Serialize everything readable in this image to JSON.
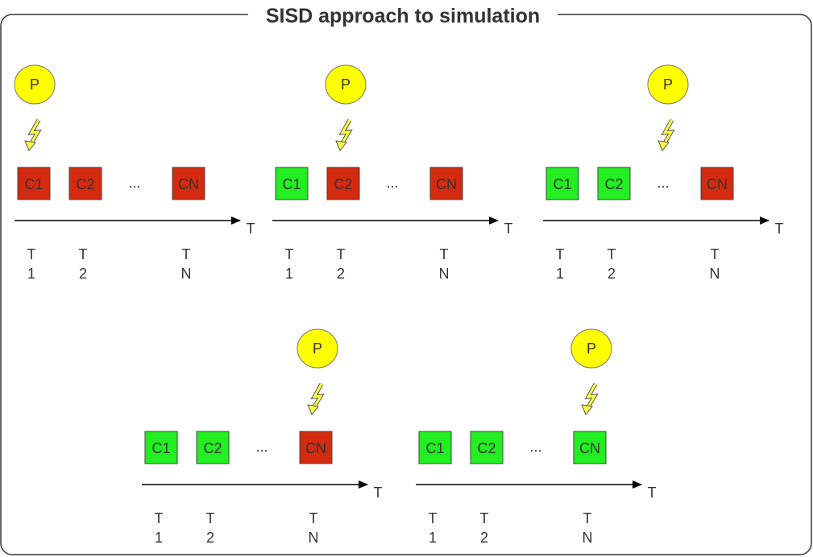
{
  "title": "SISD approach to simulation",
  "processor_label": "P",
  "ellipsis": "...",
  "axis_label": "T",
  "colors": {
    "pending": "#d42a10",
    "done": "#22ee22",
    "processor": "#ffff00",
    "bolt": "#ffff44"
  },
  "cells": [
    "C1",
    "C2",
    "CN"
  ],
  "time_labels": [
    {
      "top": "T",
      "bottom": "1"
    },
    {
      "top": "T",
      "bottom": "2"
    },
    {
      "top": "T",
      "bottom": "N"
    }
  ],
  "panels": [
    {
      "active": "C1",
      "states": [
        "pending",
        "pending",
        "pending"
      ]
    },
    {
      "active": "C2",
      "states": [
        "done",
        "pending",
        "pending"
      ]
    },
    {
      "active": "...",
      "states": [
        "done",
        "done",
        "pending"
      ]
    },
    {
      "active": "CN",
      "states": [
        "done",
        "done",
        "pending"
      ]
    },
    {
      "active": "CN",
      "states": [
        "done",
        "done",
        "done"
      ]
    }
  ]
}
